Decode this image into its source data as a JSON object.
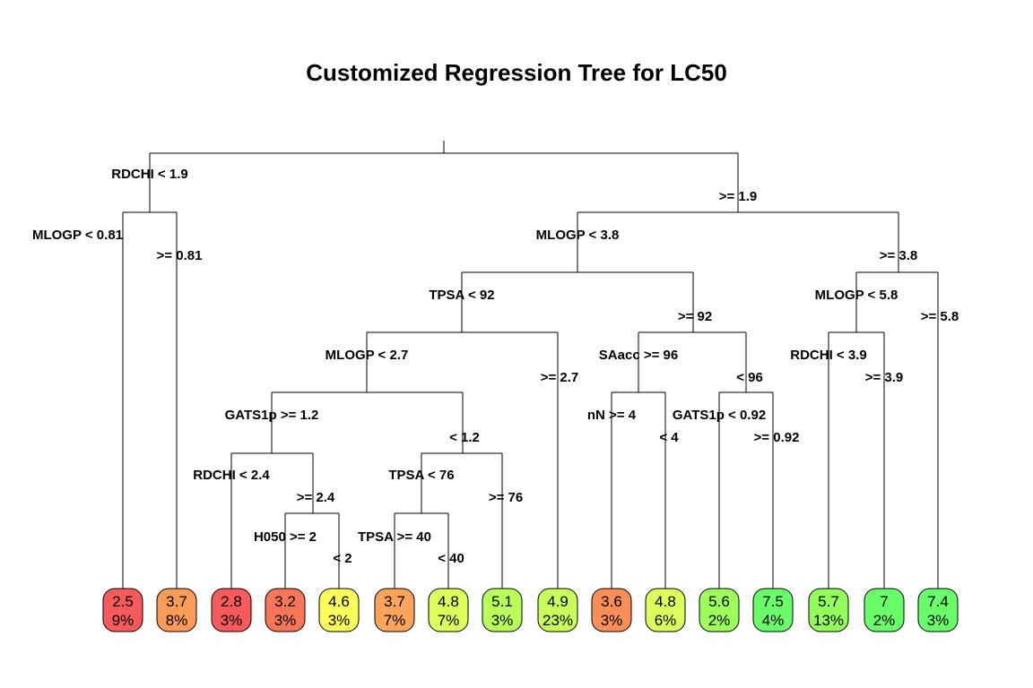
{
  "title": "Customized Regression Tree for LC50",
  "nodes": [
    {
      "id": "root"
    },
    {
      "id": "n1",
      "label": "RDCHI < 1.9"
    },
    {
      "id": "n2",
      "label": ">= 1.9"
    },
    {
      "id": "n3",
      "label": "MLOGP < 0.81"
    },
    {
      "id": "n4",
      "label": ">= 0.81"
    },
    {
      "id": "n5",
      "label": "MLOGP < 3.8"
    },
    {
      "id": "n6",
      "label": ">= 3.8"
    },
    {
      "id": "n7",
      "label": "TPSA < 92"
    },
    {
      "id": "n8",
      "label": ">= 92"
    },
    {
      "id": "n9",
      "label": "MLOGP < 5.8"
    },
    {
      "id": "n10",
      "label": ">= 5.8"
    },
    {
      "id": "n11",
      "label": "MLOGP < 2.7"
    },
    {
      "id": "n12",
      "label": ">= 2.7"
    },
    {
      "id": "n13",
      "label": "SAacc >= 96"
    },
    {
      "id": "n14",
      "label": "< 96"
    },
    {
      "id": "n15",
      "label": "RDCHI < 3.9"
    },
    {
      "id": "n16",
      "label": ">= 3.9"
    },
    {
      "id": "n17",
      "label": "GATS1p >= 1.2"
    },
    {
      "id": "n18",
      "label": "< 1.2"
    },
    {
      "id": "n19",
      "label": "nN >= 4"
    },
    {
      "id": "n20",
      "label": "< 4"
    },
    {
      "id": "n21",
      "label": "GATS1p < 0.92"
    },
    {
      "id": "n22",
      "label": ">= 0.92"
    },
    {
      "id": "n23",
      "label": "RDCHI < 2.4"
    },
    {
      "id": "n24",
      "label": ">= 2.4"
    },
    {
      "id": "n25",
      "label": "TPSA < 76"
    },
    {
      "id": "n26",
      "label": ">= 76"
    },
    {
      "id": "n27",
      "label": "H050 >= 2"
    },
    {
      "id": "n28",
      "label": "< 2"
    },
    {
      "id": "n29",
      "label": "TPSA >= 40"
    },
    {
      "id": "n30",
      "label": "< 40"
    }
  ],
  "leaves": [
    {
      "value": "2.5",
      "pct": "9%",
      "color": "#f65a5a"
    },
    {
      "value": "3.7",
      "pct": "8%",
      "color": "#fb9b58"
    },
    {
      "value": "2.8",
      "pct": "3%",
      "color": "#f65a5a"
    },
    {
      "value": "3.2",
      "pct": "3%",
      "color": "#f87658"
    },
    {
      "value": "4.6",
      "pct": "3%",
      "color": "#fcfd5b"
    },
    {
      "value": "3.7",
      "pct": "7%",
      "color": "#fba45b"
    },
    {
      "value": "4.8",
      "pct": "7%",
      "color": "#dcfd5b"
    },
    {
      "value": "5.1",
      "pct": "3%",
      "color": "#b9fd5b"
    },
    {
      "value": "4.9",
      "pct": "23%",
      "color": "#c8fd5b"
    },
    {
      "value": "3.6",
      "pct": "3%",
      "color": "#fa8e59"
    },
    {
      "value": "4.8",
      "pct": "6%",
      "color": "#dcfd5b"
    },
    {
      "value": "5.6",
      "pct": "2%",
      "color": "#9cfd5b"
    },
    {
      "value": "7.5",
      "pct": "4%",
      "color": "#6afd6a"
    },
    {
      "value": "5.7",
      "pct": "13%",
      "color": "#92fd5b"
    },
    {
      "value": "7",
      "pct": "2%",
      "color": "#6afd6a"
    },
    {
      "value": "7.4",
      "pct": "3%",
      "color": "#6afd6a"
    }
  ]
}
